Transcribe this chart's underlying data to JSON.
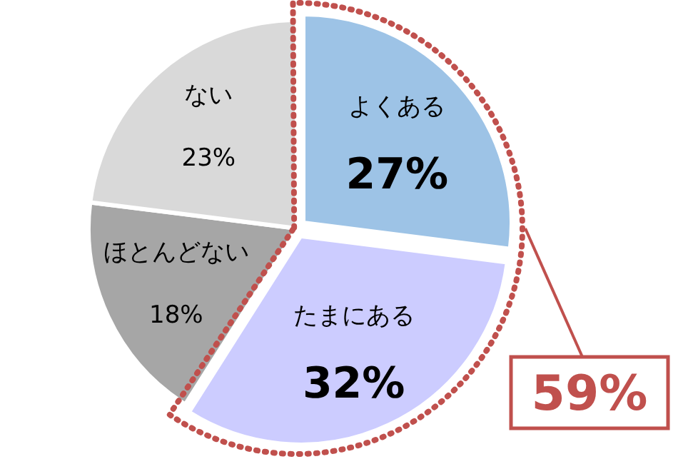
{
  "chart_data": {
    "type": "pie",
    "categories": [
      "よくある",
      "たまにある",
      "ほとんどない",
      "ない"
    ],
    "values": [
      27,
      32,
      18,
      23
    ],
    "colors": [
      "#9dc3e6",
      "#ccccff",
      "#a6a6a6",
      "#d9d9d9"
    ],
    "value_labels": [
      "27%",
      "32%",
      "18%",
      "23%"
    ],
    "annotations": [
      "59%"
    ]
  }
}
